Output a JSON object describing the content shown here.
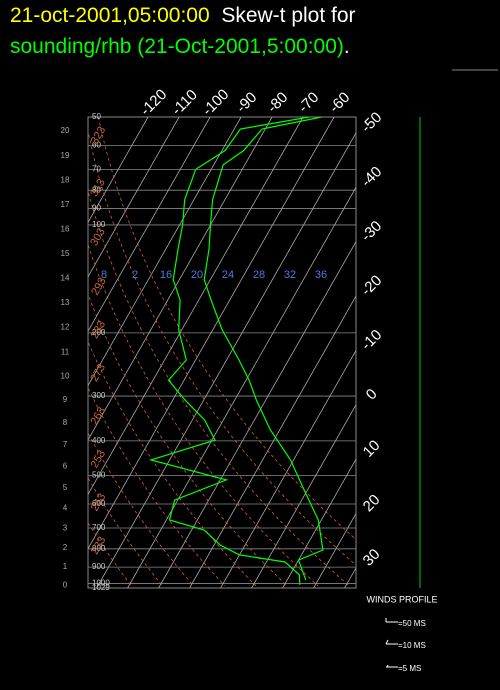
{
  "chart_data": {
    "type": "skewt",
    "title_date": "21-oct-2001,05:00:00",
    "title_text": "Skew-t plot for",
    "subtitle": "sounding/rhb (21-Oct-2001,5:00:00)",
    "subtitle_end": ".",
    "ylim": [
      50,
      1029
    ],
    "yticks": [
      50,
      60,
      70,
      80,
      90,
      100,
      200,
      300,
      400,
      500,
      600,
      700,
      800,
      900,
      1000,
      1029
    ],
    "height_ticks": [
      0,
      1,
      2,
      3,
      4,
      5,
      6,
      7,
      8,
      9,
      10,
      11,
      12,
      13,
      14,
      15,
      16,
      17,
      18,
      19,
      20
    ],
    "xticks": [
      -120,
      -110,
      -100,
      -90,
      -80,
      -70,
      -60,
      -50,
      -40,
      -30,
      -20,
      -10,
      0,
      10,
      20,
      30
    ],
    "dry_adiabats": [
      233,
      243,
      253,
      263,
      273,
      283,
      293,
      303,
      313,
      323
    ],
    "mixing_ratio_labels": [
      "8",
      "2",
      "16",
      "20",
      "24",
      "28",
      "32",
      "36"
    ],
    "series": [
      {
        "color": "#00ff00",
        "pressure": [
          50,
          54,
          62,
          68,
          85,
          100,
          117,
          142,
          162,
          196,
          238,
          271,
          308,
          373,
          452,
          549,
          665,
          806,
          860,
          977
        ],
        "values": [
          -64,
          -81,
          -83,
          -87,
          -84,
          -80,
          -76,
          -72,
          -66,
          -57,
          -46,
          -39,
          -33,
          -23,
          -11,
          -1,
          9,
          16,
          10,
          16
        ]
      },
      {
        "color": "#00ff00",
        "pressure": [
          50,
          54,
          62,
          70,
          85,
          100,
          117,
          142,
          162,
          196,
          238,
          271,
          308,
          350,
          398,
          452,
          514,
          585,
          665,
          709,
          781,
          832,
          871,
          946,
          1009
        ],
        "values": [
          -68,
          -88,
          -89,
          -95,
          -93,
          -89,
          -86,
          -82,
          -76,
          -71,
          -63,
          -65,
          -56,
          -46,
          -39,
          -56,
          -28,
          -41,
          -39,
          -26,
          -18,
          -10,
          6,
          13,
          15
        ]
      }
    ],
    "wind_title": "WINDS PROFILE",
    "wind_legend": [
      "=50 MS",
      "=10 MS",
      "=5 MS"
    ]
  }
}
